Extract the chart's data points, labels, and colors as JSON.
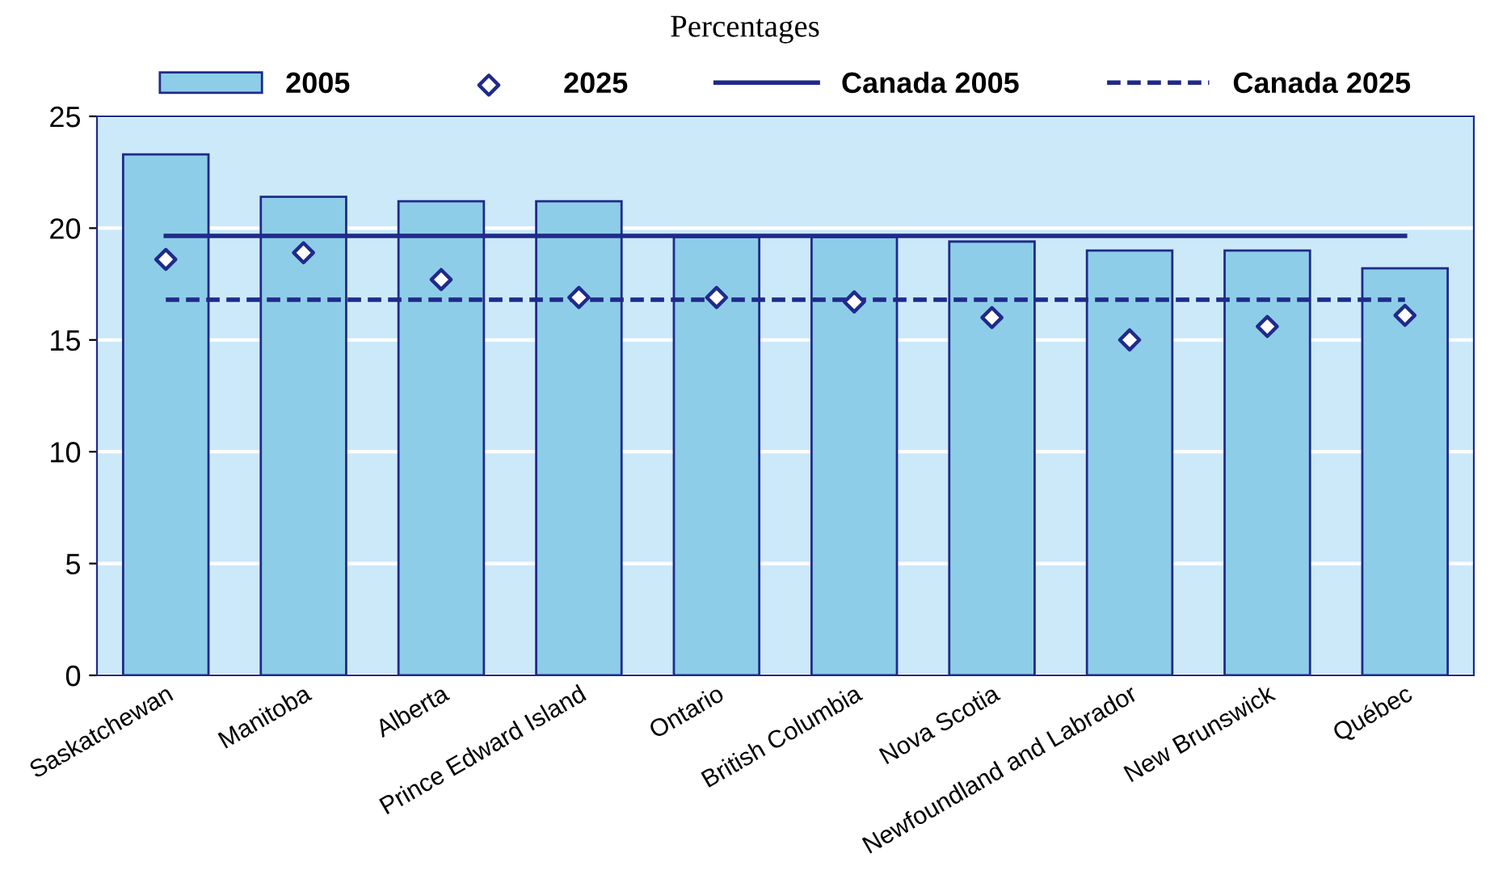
{
  "chart_data": {
    "type": "bar",
    "title": "Percentages",
    "categories": [
      "Saskatchewan",
      "Manitoba",
      "Alberta",
      "Prince Edward Island",
      "Ontario",
      "British Columbia",
      "Nova Scotia",
      "Newfoundland and Labrador",
      "New Brunswick",
      "Québec"
    ],
    "series": [
      {
        "name": "2005",
        "color": "#8ecde8",
        "values": [
          23.3,
          21.4,
          21.2,
          21.2,
          19.6,
          19.6,
          19.4,
          19.0,
          19.0,
          18.2
        ]
      },
      {
        "name": "2025",
        "type": "scatter",
        "marker": "diamond",
        "color": "#1f2a8a",
        "values": [
          18.6,
          18.9,
          17.7,
          16.9,
          16.9,
          16.7,
          16.0,
          15.0,
          15.6,
          16.1
        ]
      },
      {
        "name": "Canada 2005",
        "type": "line",
        "line_style": "solid",
        "color": "#1f2a8a",
        "values": [
          19.65,
          19.65,
          19.65,
          19.65,
          19.65,
          19.65,
          19.65,
          19.65,
          19.65,
          19.65
        ]
      },
      {
        "name": "Canada 2025",
        "type": "line",
        "line_style": "dashed",
        "color": "#1f2a8a",
        "values": [
          16.8,
          16.8,
          16.8,
          16.8,
          16.8,
          16.8,
          16.8,
          16.8,
          16.8,
          16.8
        ]
      }
    ],
    "bands": [
      {
        "axis": "y",
        "from": 0,
        "to": 25,
        "color": "#cce9f9"
      }
    ],
    "ylim": [
      0,
      25
    ],
    "yticks": [
      0,
      5,
      10,
      15,
      20,
      25
    ],
    "grid": "y",
    "legend": "top"
  }
}
